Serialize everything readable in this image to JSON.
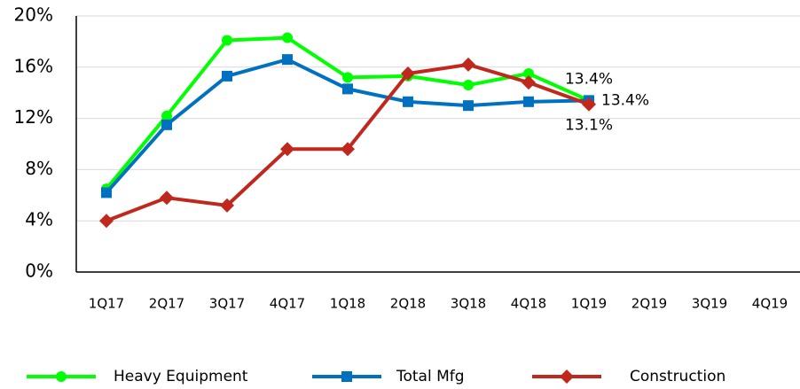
{
  "chart_data": {
    "type": "line",
    "categories": [
      "1Q17",
      "2Q17",
      "3Q17",
      "4Q17",
      "1Q18",
      "2Q18",
      "3Q18",
      "4Q18",
      "1Q19",
      "2Q19",
      "3Q19",
      "4Q19"
    ],
    "series": [
      {
        "name": "Heavy Equipment",
        "color": "#00ff00",
        "marker": "circle",
        "values": [
          6.5,
          12.2,
          18.1,
          18.3,
          15.2,
          15.3,
          14.6,
          15.5,
          13.4,
          null,
          null,
          null
        ],
        "value_labels": [
          null,
          null,
          null,
          null,
          null,
          null,
          null,
          null,
          "13.4%",
          null,
          null,
          null
        ]
      },
      {
        "name": "Total Mfg",
        "color": "#0070c0",
        "marker": "square",
        "values": [
          6.2,
          11.5,
          15.3,
          16.6,
          14.3,
          13.3,
          13.0,
          13.3,
          13.4,
          null,
          null,
          null
        ],
        "value_labels": [
          null,
          null,
          null,
          null,
          null,
          null,
          null,
          null,
          "13.4%",
          null,
          null,
          null
        ]
      },
      {
        "name": "Construction",
        "color": "#c0281e",
        "marker": "diamond",
        "values": [
          4.0,
          5.8,
          5.2,
          9.6,
          9.6,
          15.5,
          16.2,
          14.8,
          13.1,
          null,
          null,
          null
        ],
        "value_labels": [
          null,
          null,
          null,
          null,
          null,
          null,
          null,
          null,
          "13.1%",
          null,
          null,
          null
        ]
      }
    ],
    "ylim": [
      0,
      20
    ],
    "yticks": [
      {
        "value": 0,
        "label": "0%"
      },
      {
        "value": 4,
        "label": "4%"
      },
      {
        "value": 8,
        "label": "8%"
      },
      {
        "value": 12,
        "label": "12%"
      },
      {
        "value": 16,
        "label": "16%"
      },
      {
        "value": 20,
        "label": "20%"
      }
    ],
    "grid": true,
    "legend": "bottom"
  }
}
